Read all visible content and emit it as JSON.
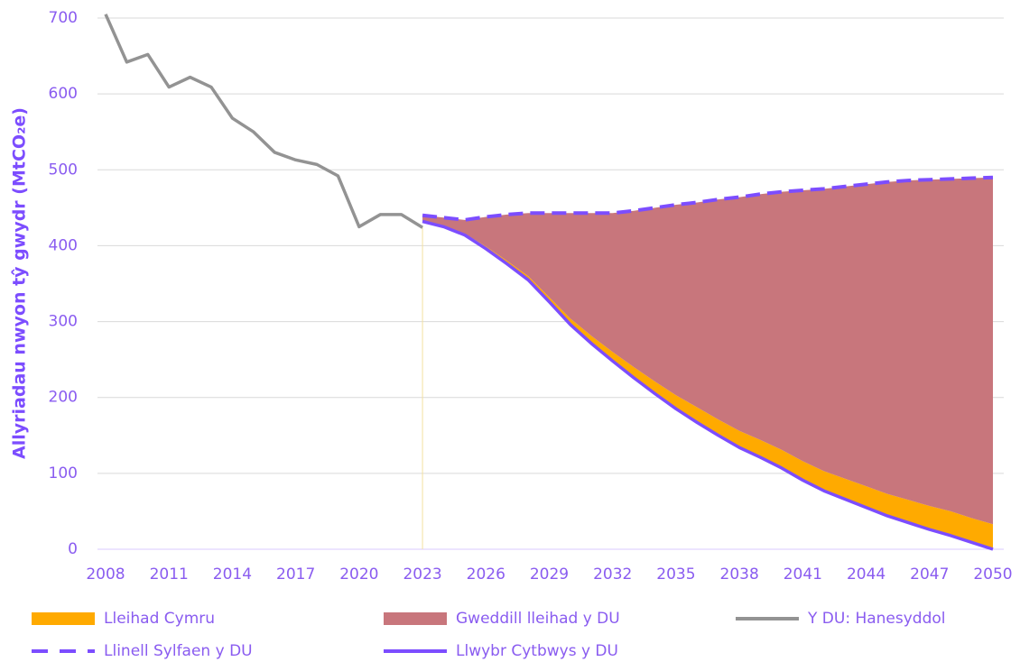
{
  "chart_data": {
    "type": "line",
    "ylabel": "Allyriadau nwyon tŷ gwydr (MtCO₂e)",
    "x": [
      2008,
      2009,
      2010,
      2011,
      2012,
      2013,
      2014,
      2015,
      2016,
      2017,
      2018,
      2019,
      2020,
      2021,
      2022,
      2023,
      2024,
      2025,
      2026,
      2027,
      2028,
      2029,
      2030,
      2031,
      2032,
      2033,
      2034,
      2035,
      2036,
      2037,
      2038,
      2039,
      2040,
      2041,
      2042,
      2043,
      2044,
      2045,
      2046,
      2047,
      2048,
      2049,
      2050
    ],
    "xlim": [
      2008,
      2050
    ],
    "xticks": [
      2008,
      2011,
      2014,
      2017,
      2020,
      2023,
      2026,
      2029,
      2032,
      2035,
      2038,
      2041,
      2044,
      2047,
      2050
    ],
    "ylim": [
      0,
      700
    ],
    "yticks": [
      0,
      100,
      200,
      300,
      400,
      500,
      600,
      700
    ],
    "grid": true,
    "stack_base": 4,
    "marker_x": 2023,
    "series": [
      {
        "name": "Lleihad Cymru",
        "color": "#ffaa00",
        "kind": "area",
        "values": [
          null,
          null,
          null,
          null,
          null,
          null,
          null,
          null,
          null,
          null,
          null,
          null,
          null,
          null,
          null,
          0,
          1,
          2,
          3,
          4,
          5,
          6,
          8,
          10,
          12,
          14,
          16,
          18,
          20,
          21,
          22,
          23,
          24,
          25,
          26,
          27,
          28,
          29,
          30,
          31,
          32,
          32,
          33
        ]
      },
      {
        "name": "Gweddill lleihad y DU",
        "color": "#c8767c",
        "kind": "area",
        "values": [
          null,
          null,
          null,
          null,
          null,
          null,
          null,
          null,
          null,
          null,
          null,
          null,
          null,
          null,
          null,
          8,
          11,
          18,
          39,
          61,
          83,
          111,
          139,
          162,
          183,
          206,
          229,
          251,
          270,
          290,
          308,
          324,
          340,
          357,
          372,
          385,
          398,
          411,
          421,
          430,
          438,
          448,
          457
        ]
      },
      {
        "name": "Y DU: Hanesyddol",
        "color": "#939393",
        "kind": "line",
        "values": [
          705,
          642,
          652,
          609,
          622,
          609,
          568,
          550,
          523,
          513,
          507,
          492,
          425,
          441,
          441,
          424,
          null,
          null,
          null,
          null,
          null,
          null,
          null,
          null,
          null,
          null,
          null,
          null,
          null,
          null,
          null,
          null,
          null,
          null,
          null,
          null,
          null,
          null,
          null,
          null,
          null,
          null,
          null
        ]
      },
      {
        "name": "Llinell Sylfaen y DU",
        "color": "#7c4dff",
        "kind": "line",
        "dashed": true,
        "values": [
          null,
          null,
          null,
          null,
          null,
          null,
          null,
          null,
          null,
          null,
          null,
          null,
          null,
          null,
          null,
          440,
          437,
          434,
          438,
          441,
          443,
          443,
          443,
          443,
          443,
          446,
          450,
          454,
          457,
          461,
          464,
          468,
          471,
          473,
          475,
          478,
          481,
          484,
          486,
          487,
          488,
          489,
          490
        ]
      },
      {
        "name": "Llwybr Cytbwys y DU",
        "color": "#7c4dff",
        "kind": "line",
        "values": [
          null,
          null,
          null,
          null,
          null,
          null,
          null,
          null,
          null,
          null,
          null,
          null,
          null,
          null,
          null,
          432,
          425,
          414,
          396,
          376,
          355,
          326,
          296,
          271,
          248,
          226,
          205,
          185,
          167,
          150,
          134,
          121,
          107,
          91,
          77,
          66,
          55,
          44,
          35,
          26,
          18,
          9,
          0
        ]
      }
    ]
  }
}
